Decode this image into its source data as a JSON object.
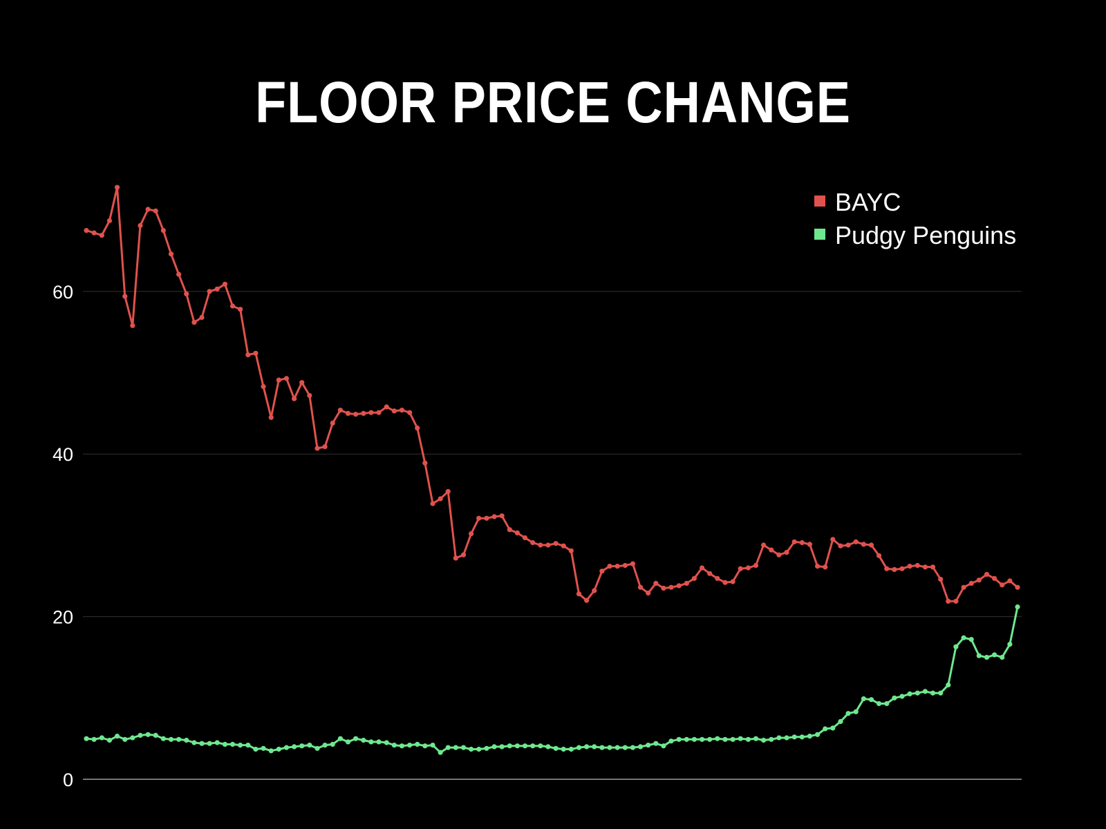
{
  "chart_data": {
    "type": "line",
    "title": "FLOOR PRICE CHANGE",
    "xlabel": "",
    "ylabel": "",
    "ylim": [
      0,
      70
    ],
    "yticks": [
      0,
      20,
      40,
      60
    ],
    "grid": "horizontal",
    "legend_position": "top-right",
    "colors": {
      "background": "#000000",
      "grid": "#333333",
      "text": "#ffffff"
    },
    "series": [
      {
        "name": "BAYC",
        "color": "#e0524d",
        "values": [
          67.5,
          67.2,
          66.9,
          68.7,
          72.8,
          59.4,
          55.8,
          68.1,
          70.1,
          69.9,
          67.5,
          64.6,
          62.1,
          59.7,
          56.2,
          56.8,
          60.0,
          60.3,
          60.9,
          58.2,
          57.8,
          52.2,
          52.4,
          48.3,
          44.5,
          49.1,
          49.3,
          46.8,
          48.8,
          47.2,
          40.7,
          40.9,
          43.8,
          45.4,
          45.0,
          44.9,
          45.0,
          45.1,
          45.1,
          45.8,
          45.3,
          45.4,
          45.1,
          43.2,
          38.9,
          33.9,
          34.5,
          35.4,
          27.2,
          27.6,
          30.2,
          32.1,
          32.1,
          32.3,
          32.4,
          30.7,
          30.3,
          29.7,
          29.1,
          28.8,
          28.8,
          29.0,
          28.7,
          28.1,
          22.8,
          22.0,
          23.2,
          25.6,
          26.2,
          26.2,
          26.3,
          26.5,
          23.6,
          22.9,
          24.1,
          23.5,
          23.6,
          23.8,
          24.1,
          24.7,
          26.0,
          25.3,
          24.7,
          24.2,
          24.3,
          25.9,
          26.0,
          26.3,
          28.8,
          28.2,
          27.6,
          27.9,
          29.2,
          29.1,
          28.9,
          26.2,
          26.1,
          29.5,
          28.7,
          28.8,
          29.2,
          28.9,
          28.8,
          27.5,
          25.9,
          25.8,
          25.9,
          26.2,
          26.3,
          26.1,
          26.1,
          24.6,
          21.9,
          21.9,
          23.6,
          24.1,
          24.5,
          25.2,
          24.7,
          23.9,
          24.4,
          23.6
        ]
      },
      {
        "name": "Pudgy Penguins",
        "color": "#6ee88f",
        "values": [
          5.0,
          4.9,
          5.1,
          4.8,
          5.3,
          4.9,
          5.1,
          5.4,
          5.5,
          5.4,
          5.0,
          4.9,
          4.9,
          4.8,
          4.5,
          4.4,
          4.4,
          4.5,
          4.3,
          4.3,
          4.2,
          4.2,
          3.7,
          3.8,
          3.5,
          3.7,
          3.9,
          4.0,
          4.1,
          4.2,
          3.8,
          4.2,
          4.3,
          5.0,
          4.6,
          5.0,
          4.8,
          4.6,
          4.6,
          4.5,
          4.2,
          4.1,
          4.2,
          4.3,
          4.1,
          4.2,
          3.3,
          3.9,
          3.9,
          3.9,
          3.7,
          3.7,
          3.8,
          4.0,
          4.0,
          4.1,
          4.1,
          4.1,
          4.1,
          4.1,
          4.0,
          3.8,
          3.7,
          3.7,
          3.9,
          4.0,
          4.0,
          3.9,
          3.9,
          3.9,
          3.9,
          3.9,
          4.0,
          4.2,
          4.4,
          4.1,
          4.7,
          4.9,
          4.9,
          4.9,
          4.9,
          4.9,
          5.0,
          4.9,
          4.9,
          5.0,
          4.9,
          5.0,
          4.8,
          4.9,
          5.1,
          5.1,
          5.2,
          5.2,
          5.3,
          5.5,
          6.2,
          6.3,
          7.1,
          8.1,
          8.3,
          9.9,
          9.8,
          9.3,
          9.3,
          10.0,
          10.2,
          10.5,
          10.6,
          10.8,
          10.6,
          10.6,
          11.6,
          16.3,
          17.4,
          17.2,
          15.2,
          15.0,
          15.3,
          15.0,
          16.6,
          21.2
        ]
      }
    ]
  }
}
